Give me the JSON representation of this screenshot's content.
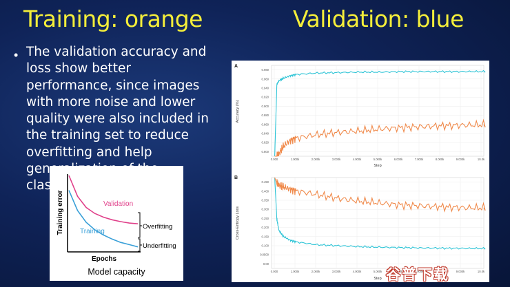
{
  "slide": {
    "title_left": "Training: orange",
    "title_right": "Validation: blue",
    "bullet": "The validation accuracy and loss show better performance, since images with more noise and lower quality were also included in the training set to reduce overfitting and help generalization of the classifier."
  },
  "colors": {
    "title": "#f4ee3a",
    "training": "#f08a4b",
    "validation": "#2ec4d6",
    "inset_training": "#3aa0d8",
    "inset_validation": "#e0408a"
  },
  "chart_data": [
    {
      "type": "line",
      "panel_label": "A",
      "xlabel": "Step",
      "ylabel": "Accuracy (%)",
      "x_ticks": [
        "0.000",
        "1.000k",
        "2.000k",
        "3.000k",
        "4.000k",
        "5.000k",
        "6.000k",
        "7.000k",
        "8.000k",
        "9.000k",
        "10.0k"
      ],
      "y_ticks": [
        "0.800",
        "0.820",
        "0.840",
        "0.860",
        "0.880",
        "0.900",
        "0.920",
        "0.940",
        "0.960",
        "0.980"
      ],
      "xlim": [
        0,
        10000
      ],
      "ylim": [
        0.8,
        0.99
      ],
      "series": [
        {
          "x": [
            0,
            100,
            200,
            400,
            700,
            1000,
            2000,
            3000,
            4000,
            5000,
            6000,
            7000,
            8000,
            9000,
            10000
          ],
          "y": [
            0.8,
            0.95,
            0.958,
            0.963,
            0.968,
            0.971,
            0.974,
            0.975,
            0.976,
            0.976,
            0.977,
            0.977,
            0.977,
            0.977,
            0.977
          ]
        },
        {
          "x": [
            0,
            100,
            200,
            400,
            700,
            1000,
            2000,
            3000,
            4000,
            5000,
            6000,
            7000,
            8000,
            9000,
            10000
          ],
          "y": [
            0.8,
            0.8,
            0.805,
            0.82,
            0.832,
            0.838,
            0.845,
            0.85,
            0.853,
            0.857,
            0.86,
            0.862,
            0.864,
            0.865,
            0.866
          ]
        }
      ]
    },
    {
      "type": "line",
      "panel_label": "B",
      "xlabel": "Step",
      "ylabel": "Cross-Entropy Loss",
      "x_ticks": [
        "0.000",
        "1.000k",
        "2.000k",
        "3.000k",
        "4.000k",
        "5.000k",
        "6.000k",
        "7.000k",
        "8.000k",
        "9.000k",
        "10.0k"
      ],
      "y_ticks": [
        "0.00",
        "0.0500",
        "0.100",
        "0.150",
        "0.200",
        "0.250",
        "0.300",
        "0.350",
        "0.400",
        "0.450"
      ],
      "xlim": [
        0,
        10000
      ],
      "ylim": [
        0,
        0.48
      ],
      "series": [
        {
          "x": [
            0,
            100,
            200,
            400,
            700,
            1000,
            2000,
            3000,
            4000,
            5000,
            6000,
            7000,
            8000,
            9000,
            10000
          ],
          "y": [
            0.48,
            0.26,
            0.2,
            0.17,
            0.15,
            0.14,
            0.125,
            0.12,
            0.115,
            0.112,
            0.11,
            0.108,
            0.107,
            0.106,
            0.105
          ]
        },
        {
          "x": [
            0,
            100,
            200,
            400,
            700,
            1000,
            2000,
            3000,
            4000,
            5000,
            6000,
            7000,
            8000,
            9000,
            10000
          ],
          "y": [
            0.48,
            0.45,
            0.44,
            0.43,
            0.42,
            0.41,
            0.39,
            0.37,
            0.355,
            0.345,
            0.335,
            0.33,
            0.325,
            0.32,
            0.32
          ]
        }
      ]
    },
    {
      "type": "line",
      "xlabel": "Epochs",
      "ylabel": "Training error",
      "caption": "Model capacity",
      "labels": {
        "validation": "Validation",
        "training": "Training",
        "overfitting": "Overfitting",
        "underfitting": "Underfitting"
      },
      "series": [
        {
          "name": "Validation",
          "x": [
            0,
            0.5,
            1,
            1.5,
            2,
            2.5,
            3,
            3.5,
            4
          ],
          "y": [
            10,
            7.2,
            5.7,
            4.9,
            4.4,
            4.05,
            3.8,
            3.6,
            3.5
          ]
        },
        {
          "name": "Training",
          "x": [
            0,
            0.5,
            1,
            1.5,
            2,
            2.5,
            3,
            3.5,
            4
          ],
          "y": [
            8,
            5.3,
            3.7,
            2.7,
            2.0,
            1.45,
            1.0,
            0.7,
            0.4
          ]
        }
      ]
    }
  ],
  "watermark": "谷普下载"
}
